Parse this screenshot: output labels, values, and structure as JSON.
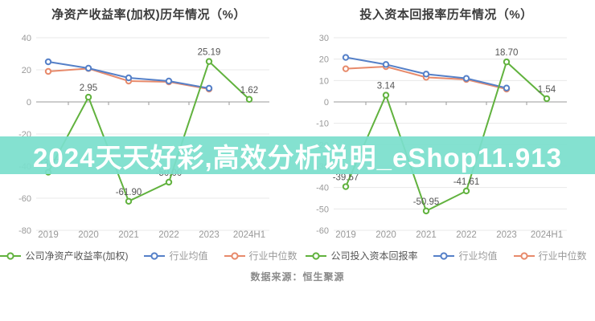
{
  "banner": {
    "text": "2024天天好彩,高效分析说明_eShop11.913",
    "bg_color": "#7bdfcd",
    "text_color": "#ffffff"
  },
  "source": {
    "label": "数据来源：恒生聚源"
  },
  "colors": {
    "company_green": "#61b23e",
    "industry_mean_blue": "#5580c8",
    "industry_median_orange": "#e78a6b",
    "grid": "#e8e8e8",
    "zero_axis": "#9a9a9a",
    "tick_label": "#999999",
    "data_label": "#555555"
  },
  "chart_data": [
    {
      "type": "line",
      "title": "净资产收益率(加权)历年情况（%）",
      "categories": [
        "2019",
        "2020",
        "2021",
        "2022",
        "2023",
        "2024H1"
      ],
      "ylim": [
        -80,
        40
      ],
      "yticks": [
        40,
        20,
        0,
        -20,
        -40,
        -60,
        -80
      ],
      "grid": true,
      "legend_position": "bottom",
      "series": [
        {
          "name": "公司净资产收益率(加权)",
          "color": "#61b23e",
          "values": [
            -43.77,
            2.95,
            -61.9,
            -50.0,
            25.19,
            1.62
          ],
          "labels": [
            "-43.77",
            "2.95",
            "-61.90",
            "-50.00",
            "25.19",
            "1.62"
          ]
        },
        {
          "name": "行业均值",
          "color": "#5580c8",
          "values": [
            25.0,
            21.0,
            15.0,
            13.0,
            8.5,
            null
          ]
        },
        {
          "name": "行业中位数",
          "color": "#e78a6b",
          "values": [
            19.0,
            20.8,
            13.0,
            12.5,
            8.0,
            null
          ]
        }
      ]
    },
    {
      "type": "line",
      "title": "投入资本回报率历年情况（%）",
      "categories": [
        "2019",
        "2020",
        "2021",
        "2022",
        "2023",
        "2024H1"
      ],
      "ylim": [
        -60,
        30
      ],
      "yticks": [
        30,
        20,
        10,
        0,
        -10,
        -20,
        -30,
        -40,
        -50,
        -60
      ],
      "grid": true,
      "legend_position": "bottom",
      "series": [
        {
          "name": "公司投入资本回报率",
          "color": "#61b23e",
          "values": [
            -39.57,
            3.14,
            -50.95,
            -41.61,
            18.7,
            1.54
          ],
          "labels": [
            "-39.57",
            "3.14",
            "-50.95",
            "-41.61",
            "18.70",
            "1.54"
          ]
        },
        {
          "name": "行业均值",
          "color": "#5580c8",
          "values": [
            20.8,
            17.5,
            13.0,
            11.0,
            6.5,
            null
          ]
        },
        {
          "name": "行业中位数",
          "color": "#e78a6b",
          "values": [
            15.5,
            16.5,
            11.5,
            10.5,
            6.0,
            null
          ]
        }
      ]
    }
  ]
}
